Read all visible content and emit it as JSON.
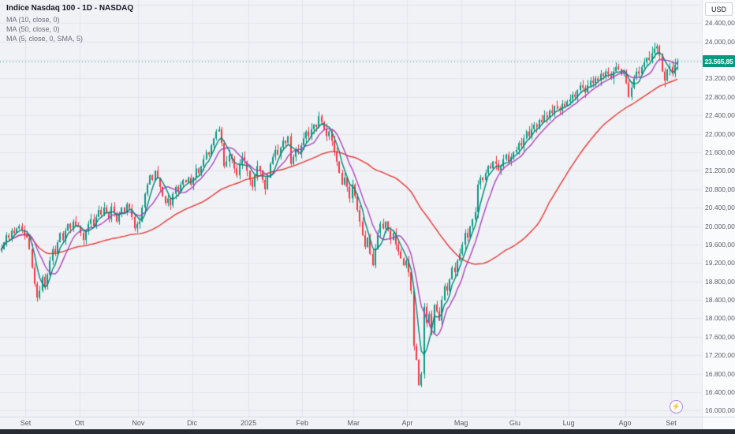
{
  "header": {
    "symbol_title": "Indice Nasdaq 100 - 1D - NASDAQ",
    "currency_label": "USD",
    "indicators": [
      "MA (10, close, 0)",
      "MA (50, close, 0)",
      "MA (5, close, 0, SMA, 5)"
    ]
  },
  "icons": {
    "boost_icon": "⚡"
  },
  "price_scale": {
    "min": 15870,
    "max": 24900,
    "grid_step": 400,
    "last_price": 23565.85,
    "last_price_label": "23.565,85",
    "ticks": [
      "24.400,00",
      "24.000,00",
      "23.200,00",
      "22.800,00",
      "22.400,00",
      "22.000,00",
      "21.600,00",
      "21.200,00",
      "20.800,00",
      "20.400,00",
      "20.000,00",
      "19.600,00",
      "19.200,00",
      "18.800,00",
      "18.400,00",
      "18.000,00",
      "17.600,00",
      "17.200,00",
      "16.800,00",
      "16.400,00",
      "16.000,00"
    ]
  },
  "time_scale": {
    "months": [
      {
        "label": "Set",
        "index": 10
      },
      {
        "label": "Ott",
        "index": 31
      },
      {
        "label": "Nov",
        "index": 54
      },
      {
        "label": "Dic",
        "index": 75
      },
      {
        "label": "2025",
        "index": 97
      },
      {
        "label": "Feb",
        "index": 118
      },
      {
        "label": "Mar",
        "index": 138
      },
      {
        "label": "Apr",
        "index": 159
      },
      {
        "label": "Mag",
        "index": 180
      },
      {
        "label": "Giu",
        "index": 201
      },
      {
        "label": "Lug",
        "index": 222
      },
      {
        "label": "Ago",
        "index": 244
      },
      {
        "label": "Set",
        "index": 262
      }
    ]
  },
  "colors": {
    "up": "#089981",
    "down": "#f23645",
    "ma5": "#00897b",
    "ma10": "#ab47bc",
    "ma50": "#e53935",
    "chart_bg": "#f1f2f6",
    "axis_bg": "#fafbfd",
    "grid": "#e2e5ec",
    "badge_bg": "#089981",
    "text_dark": "#131722",
    "text_muted": "#6a6d78",
    "bottom_strip": "#272b34"
  },
  "chart_data": {
    "type": "candlestick",
    "title": "Indice Nasdaq 100 - 1D - NASDAQ",
    "timeframe": "1D",
    "currency": "USD",
    "ylim": [
      15870,
      24900
    ],
    "right_margin_bars": 9,
    "x_axis": {
      "unit": "trading-days",
      "month_labels": [
        "Set",
        "Ott",
        "Nov",
        "Dic",
        "2025",
        "Feb",
        "Mar",
        "Apr",
        "Mag",
        "Giu",
        "Lug",
        "Ago",
        "Set"
      ]
    },
    "overlays": [
      {
        "name": "MA 5",
        "type": "sma",
        "period": 5,
        "color": "#00897b"
      },
      {
        "name": "MA 10",
        "type": "sma",
        "period": 10,
        "color": "#ab47bc"
      },
      {
        "name": "MA 50",
        "type": "sma",
        "period": 50,
        "color": "#e53935"
      }
    ],
    "last_close": 23565.85,
    "series": [
      {
        "name": "close",
        "values": [
          19500,
          19650,
          19800,
          19750,
          19900,
          19850,
          19950,
          20000,
          19900,
          19800,
          19750,
          19500,
          19100,
          18750,
          18450,
          18600,
          18900,
          18700,
          18950,
          19250,
          19500,
          19400,
          19650,
          19850,
          19700,
          19900,
          20050,
          19950,
          20100,
          20000,
          19980,
          19850,
          19700,
          19900,
          20050,
          20150,
          20000,
          20200,
          20350,
          20250,
          20400,
          20300,
          20150,
          20420,
          20280,
          20100,
          20250,
          20400,
          20300,
          20480,
          20380,
          20200,
          19950,
          20050,
          20100,
          20400,
          20700,
          20900,
          21100,
          21000,
          21200,
          21050,
          20850,
          20650,
          20500,
          20600,
          20450,
          20700,
          20850,
          20750,
          20900,
          21000,
          20950,
          21050,
          20900,
          21050,
          21250,
          21150,
          21300,
          21450,
          21600,
          21550,
          21750,
          21900,
          22050,
          22100,
          21800,
          21300,
          21400,
          21550,
          21450,
          21250,
          21100,
          21350,
          21500,
          21400,
          21200,
          21000,
          20850,
          21100,
          21300,
          21200,
          21000,
          20800,
          21050,
          21350,
          21500,
          21650,
          21550,
          21700,
          21850,
          21800,
          21950,
          21350,
          21500,
          21650,
          21600,
          21750,
          21900,
          22050,
          21950,
          22100,
          22200,
          22150,
          22380,
          22250,
          22100,
          21950,
          22050,
          21850,
          21600,
          21400,
          21150,
          20900,
          21050,
          20850,
          20600,
          20900,
          20650,
          20350,
          20100,
          19800,
          19550,
          19750,
          19400,
          19150,
          19500,
          19850,
          20050,
          19950,
          20100,
          19900,
          19700,
          19850,
          19600,
          19450,
          19300,
          19150,
          19250,
          19000,
          18600,
          17400,
          17100,
          16550,
          16800,
          18250,
          17900,
          18100,
          17700,
          18300,
          18150,
          17950,
          18400,
          18700,
          18600,
          18850,
          19100,
          19000,
          19250,
          19400,
          19600,
          19850,
          19750,
          20000,
          20150,
          20300,
          20900,
          21050,
          21000,
          21150,
          21300,
          21250,
          21400,
          21350,
          21200,
          21300,
          21450,
          21550,
          21400,
          21500,
          21600,
          21650,
          21800,
          21750,
          21900,
          22050,
          21950,
          22100,
          22200,
          22150,
          22300,
          22250,
          22400,
          22350,
          22500,
          22450,
          22600,
          22550,
          22500,
          22650,
          22600,
          22700,
          22750,
          22850,
          22800,
          22950,
          23050,
          23000,
          22900,
          23050,
          23150,
          23100,
          23200,
          23150,
          23300,
          23250,
          23350,
          23300,
          23200,
          23350,
          23450,
          23400,
          23300,
          23350,
          23100,
          22800,
          23000,
          23200,
          23350,
          23300,
          23450,
          23550,
          23650,
          23600,
          23750,
          23850,
          23900,
          23700,
          23350,
          23150,
          23400,
          23450,
          23300,
          23500,
          23565.85
        ]
      }
    ]
  }
}
